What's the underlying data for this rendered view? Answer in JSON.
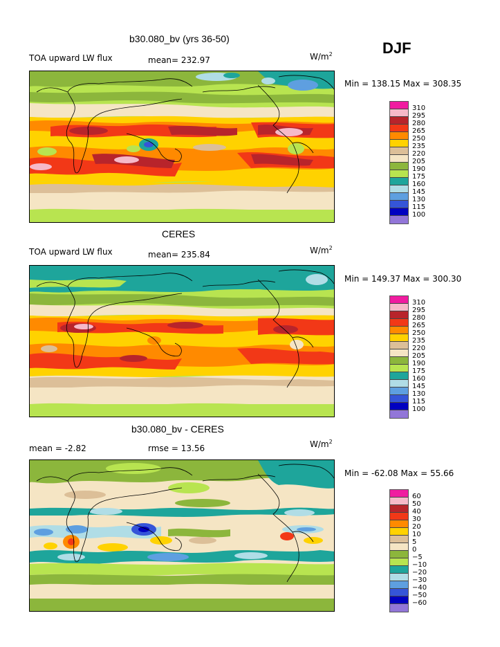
{
  "season": "DJF",
  "panels": [
    {
      "title": "b30.080_bv (yrs 36-50)",
      "left_label": "TOA upward LW flux",
      "stat_text": "mean= 232.97",
      "units_base": "W/m",
      "units_exp": "2",
      "minmax": "Min = 138.15 Max = 308.35",
      "legend_labels": [
        "310",
        "295",
        "280",
        "265",
        "250",
        "235",
        "220",
        "205",
        "190",
        "175",
        "160",
        "145",
        "130",
        "115",
        "100"
      ],
      "legend_colors": [
        "#f01ca0",
        "#f6b9c9",
        "#b8242b",
        "#f23817",
        "#ff8a00",
        "#ffd200",
        "#dcbf98",
        "#f5e5c4",
        "#8cb63c",
        "#b8e450",
        "#1ea59b",
        "#b0dde6",
        "#5e9fe0",
        "#3555d8",
        "#0000c0",
        "#9276d8"
      ]
    },
    {
      "title": "CERES",
      "left_label": "TOA upward LW flux",
      "stat_text": "mean= 235.84",
      "units_base": "W/m",
      "units_exp": "2",
      "minmax": "Min = 149.37 Max = 300.30",
      "legend_labels": [
        "310",
        "295",
        "280",
        "265",
        "250",
        "235",
        "220",
        "205",
        "190",
        "175",
        "160",
        "145",
        "130",
        "115",
        "100"
      ],
      "legend_colors": [
        "#f01ca0",
        "#f6b9c9",
        "#b8242b",
        "#f23817",
        "#ff8a00",
        "#ffd200",
        "#dcbf98",
        "#f5e5c4",
        "#8cb63c",
        "#b8e450",
        "#1ea59b",
        "#b0dde6",
        "#5e9fe0",
        "#3555d8",
        "#0000c0",
        "#9276d8"
      ]
    },
    {
      "title": "b30.080_bv - CERES",
      "left_label": "mean =   -2.82",
      "stat_text": "rmse =  13.56",
      "units_base": "W/m",
      "units_exp": "2",
      "minmax": "Min = -62.08 Max =  55.66",
      "legend_labels": [
        "60",
        "50",
        "40",
        "30",
        "20",
        "10",
        "5",
        "0",
        "−5",
        "−10",
        "−20",
        "−30",
        "−40",
        "−50",
        "−60"
      ],
      "legend_colors": [
        "#f01ca0",
        "#f6b9c9",
        "#b8242b",
        "#f23817",
        "#ff8a00",
        "#ffd200",
        "#dcbf98",
        "#f5e5c4",
        "#8cb63c",
        "#b8e450",
        "#1ea59b",
        "#b0dde6",
        "#5e9fe0",
        "#3555d8",
        "#0000c0",
        "#9276d8"
      ]
    }
  ]
}
